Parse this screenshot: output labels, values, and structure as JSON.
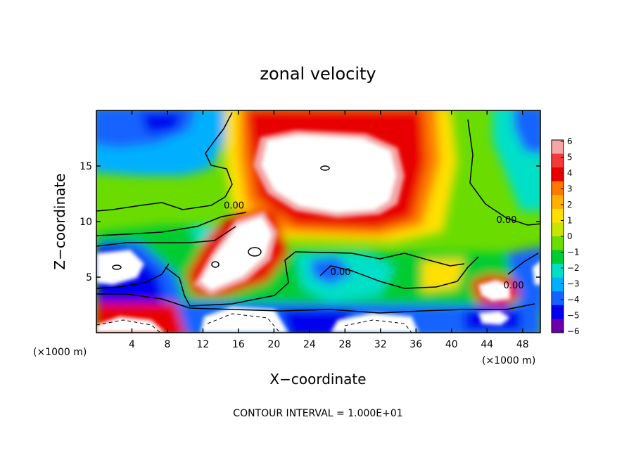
{
  "chart_data": {
    "type": "heatmap",
    "title": "zonal velocity",
    "xlabel": "X−coordinate",
    "ylabel": "Z−coordinate",
    "x_unit_left": "(×1000 m)",
    "x_unit_right": "(×1000 m)",
    "xlim": [
      0,
      50
    ],
    "ylim": [
      0,
      20
    ],
    "x_ticks": [
      4,
      8,
      12,
      16,
      20,
      24,
      28,
      32,
      36,
      40,
      44,
      48
    ],
    "y_ticks": [
      5,
      10,
      15
    ],
    "colorbar": {
      "labels": [
        "6",
        "5",
        "4",
        "3",
        "2",
        "1",
        "0",
        "−1",
        "−2",
        "−3",
        "−4",
        "−5",
        "−6"
      ],
      "colors": [
        "#f4a6a6",
        "#f23a3a",
        "#e80000",
        "#ff7a00",
        "#ffb000",
        "#ffe000",
        "#c8e400",
        "#6adc00",
        "#00cc33",
        "#00e0c8",
        "#00b0ff",
        "#1463ff",
        "#0000ee",
        "#6a00aa"
      ]
    },
    "contour_labels": [
      {
        "text": "0.00",
        "x": 15.5,
        "z": 11.5
      },
      {
        "text": "0.00",
        "x": 27.5,
        "z": 5.5
      },
      {
        "text": "0.00",
        "x": 46.2,
        "z": 10.2
      },
      {
        "text": "0.00",
        "x": 47.0,
        "z": 4.3
      }
    ],
    "contour_interval_note": "CONTOUR INTERVAL = 1.000E+01"
  }
}
